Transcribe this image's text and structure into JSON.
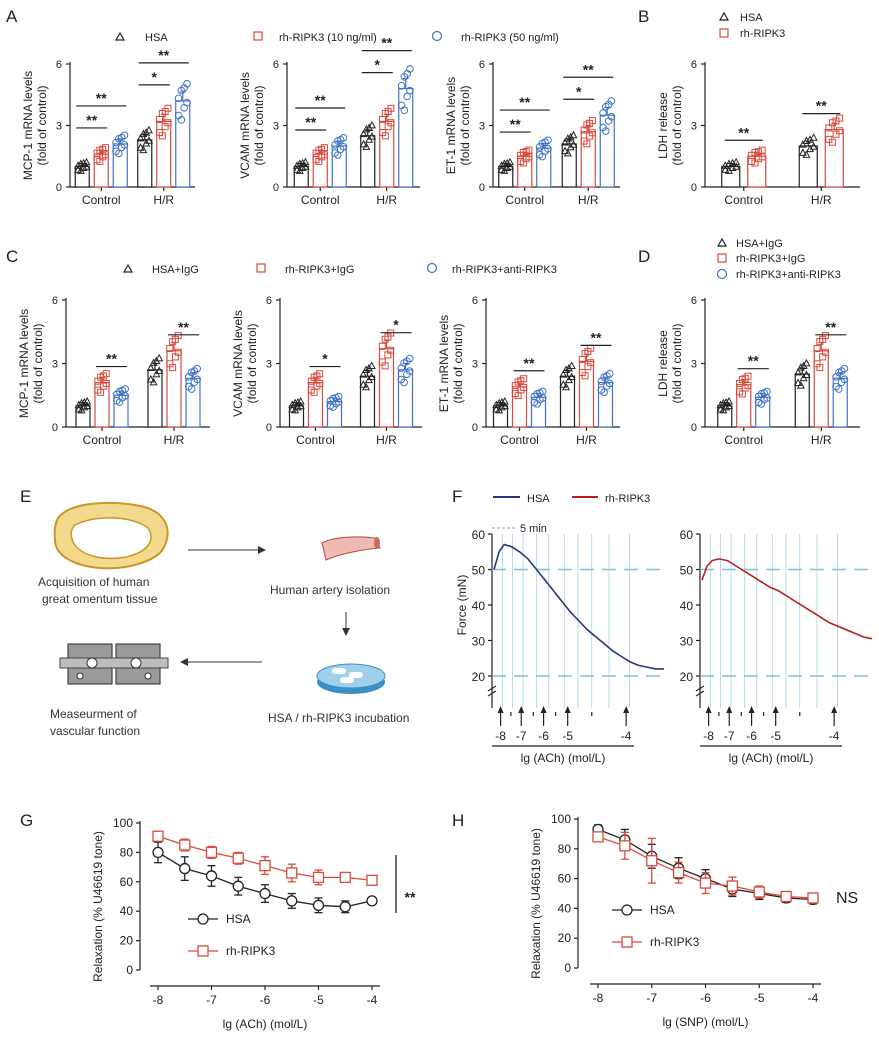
{
  "colors": {
    "hsa": "#222222",
    "r10": "#d94a3d",
    "r50": "#3f73c4",
    "anti": "#3f73c4",
    "trace_hsa": "#233a7a",
    "trace_rh": "#b52121",
    "cyan": "#7cc3d6"
  },
  "panel_labels": {
    "A": "A",
    "B": "B",
    "C": "C",
    "D": "D",
    "E": "E",
    "F": "F",
    "G": "G",
    "H": "H"
  },
  "legend_A": {
    "hsa": "HSA",
    "r10": "rh-RIPK3 (10 ng/ml)",
    "r50": "rh-RIPK3 (50 ng/ml)"
  },
  "legend_B": {
    "hsa": "HSA",
    "rh": "rh-RIPK3"
  },
  "legend_C": {
    "hsa": "HSA+IgG",
    "rh": "rh-RIPK3+IgG",
    "anti": "rh-RIPK3+anti-RIPK3"
  },
  "legend_D": {
    "hsa": "HSA+IgG",
    "rh": "rh-RIPK3+IgG",
    "anti": "rh-RIPK3+anti-RIPK3"
  },
  "bar_categories": [
    "Control",
    "H/R"
  ],
  "y_ticks_bar": [
    "0",
    "3",
    "6"
  ],
  "chart_data": [
    {
      "id": "A1",
      "type": "bar",
      "ylabel_1": "MCP-1 mRNA levels",
      "ylabel_2": "(fold of control)",
      "ylim": [
        0,
        6
      ],
      "categories": [
        "Control",
        "H/R"
      ],
      "series": [
        {
          "name": "HSA",
          "values": [
            1.0,
            2.3
          ]
        },
        {
          "name": "rh-RIPK3 (10 ng/ml)",
          "values": [
            1.6,
            3.2
          ]
        },
        {
          "name": "rh-RIPK3 (50 ng/ml)",
          "values": [
            2.1,
            4.2
          ]
        }
      ],
      "sig": [
        {
          "from": 0,
          "to": 1,
          "group": 0,
          "text": "**"
        },
        {
          "from": 0,
          "to": 2,
          "group": 0,
          "text": "**"
        },
        {
          "from": 0,
          "to": 1,
          "group": 1,
          "text": "*"
        },
        {
          "from": 0,
          "to": 2,
          "group": 1,
          "text": "**"
        }
      ]
    },
    {
      "id": "A2",
      "type": "bar",
      "ylabel_1": "VCAM mRNA levels",
      "ylabel_2": "(fold of control)",
      "ylim": [
        0,
        6
      ],
      "categories": [
        "Control",
        "H/R"
      ],
      "series": [
        {
          "name": "HSA",
          "values": [
            1.0,
            2.5
          ]
        },
        {
          "name": "rh-RIPK3 (10 ng/ml)",
          "values": [
            1.6,
            3.2
          ]
        },
        {
          "name": "rh-RIPK3 (50 ng/ml)",
          "values": [
            2.0,
            4.8
          ]
        }
      ],
      "sig": [
        {
          "from": 0,
          "to": 1,
          "group": 0,
          "text": "**"
        },
        {
          "from": 0,
          "to": 2,
          "group": 0,
          "text": "**"
        },
        {
          "from": 0,
          "to": 1,
          "group": 1,
          "text": "*"
        },
        {
          "from": 0,
          "to": 2,
          "group": 1,
          "text": "**"
        }
      ]
    },
    {
      "id": "A3",
      "type": "bar",
      "ylabel_1": "ET-1 mRNA levels",
      "ylabel_2": "(fold of control)",
      "ylim": [
        0,
        6
      ],
      "categories": [
        "Control",
        "H/R"
      ],
      "series": [
        {
          "name": "HSA",
          "values": [
            1.0,
            2.1
          ]
        },
        {
          "name": "rh-RIPK3 (10 ng/ml)",
          "values": [
            1.5,
            2.7
          ]
        },
        {
          "name": "rh-RIPK3 (50 ng/ml)",
          "values": [
            1.9,
            3.5
          ]
        }
      ],
      "sig": [
        {
          "from": 0,
          "to": 1,
          "group": 0,
          "text": "**"
        },
        {
          "from": 0,
          "to": 2,
          "group": 0,
          "text": "**"
        },
        {
          "from": 0,
          "to": 1,
          "group": 1,
          "text": "*"
        },
        {
          "from": 0,
          "to": 2,
          "group": 1,
          "text": "**"
        }
      ]
    },
    {
      "id": "B",
      "type": "bar",
      "ylabel_1": "LDH release",
      "ylabel_2": "(fold of control)",
      "ylim": [
        0,
        6
      ],
      "categories": [
        "Control",
        "H/R"
      ],
      "series": [
        {
          "name": "HSA",
          "values": [
            1.0,
            2.0
          ]
        },
        {
          "name": "rh-RIPK3",
          "values": [
            1.5,
            2.8
          ]
        }
      ],
      "sig": [
        {
          "from": 0,
          "to": 1,
          "group": 0,
          "text": "**"
        },
        {
          "from": 0,
          "to": 1,
          "group": 1,
          "text": "**"
        }
      ]
    },
    {
      "id": "C1",
      "type": "bar",
      "ylabel_1": "MCP-1 mRNA levels",
      "ylabel_2": "(fold of control)",
      "ylim": [
        0,
        6
      ],
      "categories": [
        "Control",
        "H/R"
      ],
      "series": [
        {
          "name": "HSA+IgG",
          "values": [
            1.0,
            2.7
          ]
        },
        {
          "name": "rh-RIPK3+IgG",
          "values": [
            2.1,
            3.6
          ]
        },
        {
          "name": "rh-RIPK3+anti-RIPK3",
          "values": [
            1.5,
            2.3
          ]
        }
      ],
      "sig": [
        {
          "from": 1,
          "to": 2,
          "group": 0,
          "text": "**"
        },
        {
          "from": 1,
          "to": 2,
          "group": 1,
          "text": "**"
        }
      ]
    },
    {
      "id": "C2",
      "type": "bar",
      "ylabel_1": "VCAM mRNA levels",
      "ylabel_2": "(fold of control)",
      "ylim": [
        0,
        6
      ],
      "categories": [
        "Control",
        "H/R"
      ],
      "series": [
        {
          "name": "HSA+IgG",
          "values": [
            1.0,
            2.4
          ]
        },
        {
          "name": "rh-RIPK3+IgG",
          "values": [
            2.1,
            3.7
          ]
        },
        {
          "name": "rh-RIPK3+anti-RIPK3",
          "values": [
            1.2,
            2.7
          ]
        }
      ],
      "sig": [
        {
          "from": 1,
          "to": 2,
          "group": 0,
          "text": "*"
        },
        {
          "from": 1,
          "to": 2,
          "group": 1,
          "text": "*"
        }
      ]
    },
    {
      "id": "C3",
      "type": "bar",
      "ylabel_1": "ET-1 mRNA levels",
      "ylabel_2": "(fold of control)",
      "ylim": [
        0,
        6
      ],
      "categories": [
        "Control",
        "H/R"
      ],
      "series": [
        {
          "name": "HSA+IgG",
          "values": [
            1.0,
            2.4
          ]
        },
        {
          "name": "rh-RIPK3+IgG",
          "values": [
            1.9,
            3.1
          ]
        },
        {
          "name": "rh-RIPK3+anti-RIPK3",
          "values": [
            1.4,
            2.1
          ]
        }
      ],
      "sig": [
        {
          "from": 1,
          "to": 2,
          "group": 0,
          "text": "**"
        },
        {
          "from": 1,
          "to": 2,
          "group": 1,
          "text": "**"
        }
      ]
    },
    {
      "id": "D",
      "type": "bar",
      "ylabel_1": "LDH release",
      "ylabel_2": "(fold of control)",
      "ylim": [
        0,
        6
      ],
      "categories": [
        "Control",
        "H/R"
      ],
      "series": [
        {
          "name": "HSA+IgG",
          "values": [
            1.0,
            2.5
          ]
        },
        {
          "name": "rh-RIPK3+IgG",
          "values": [
            2.0,
            3.6
          ]
        },
        {
          "name": "rh-RIPK3+anti-RIPK3",
          "values": [
            1.4,
            2.3
          ]
        }
      ],
      "sig": [
        {
          "from": 1,
          "to": 2,
          "group": 0,
          "text": "**"
        },
        {
          "from": 1,
          "to": 2,
          "group": 1,
          "text": "**"
        }
      ]
    },
    {
      "id": "F",
      "type": "line",
      "ylabel": "Force (mN)",
      "xlabel": "lg (ACh) (mol/L)",
      "yticks": [
        "20",
        "30",
        "40",
        "50",
        "60"
      ],
      "ylim": [
        20,
        60
      ],
      "xticks": [
        "-8",
        "-7",
        "-6",
        "-5",
        "-4"
      ],
      "timebar": "5 min",
      "legend": [
        "HSA",
        "rh-RIPK3"
      ],
      "series": [
        {
          "name": "HSA",
          "t": [
            0,
            0.03,
            0.06,
            0.1,
            0.15,
            0.2,
            0.25,
            0.3,
            0.35,
            0.4,
            0.45,
            0.5,
            0.55,
            0.6,
            0.65,
            0.7,
            0.75,
            0.8,
            0.85,
            0.9,
            0.95,
            1.0
          ],
          "values": [
            50,
            55,
            57,
            56.5,
            55,
            53,
            50,
            47,
            44,
            41,
            38,
            35.5,
            33,
            31,
            29,
            27,
            25.5,
            24,
            23,
            22.5,
            22,
            22
          ]
        },
        {
          "name": "rh-RIPK3",
          "t": [
            0,
            0.03,
            0.06,
            0.1,
            0.15,
            0.2,
            0.25,
            0.3,
            0.35,
            0.4,
            0.45,
            0.5,
            0.55,
            0.6,
            0.65,
            0.7,
            0.75,
            0.8,
            0.85,
            0.9,
            0.95,
            1.0
          ],
          "values": [
            47,
            51,
            52.5,
            53,
            52.5,
            51,
            49.5,
            48,
            46.5,
            45,
            44,
            42.5,
            41,
            39.5,
            38,
            36.5,
            35,
            34,
            33,
            32,
            31,
            30.5
          ]
        }
      ]
    },
    {
      "id": "G",
      "type": "line",
      "ylabel": "Relaxation (% U46619 tone)",
      "xlabel": "lg (ACh) (mol/L)",
      "ylim": [
        0,
        100
      ],
      "yticks": [
        "0",
        "20",
        "40",
        "60",
        "80",
        "100"
      ],
      "xticks": [
        "-8",
        "-7",
        "-6",
        "-5",
        "-4"
      ],
      "sig_text": "**",
      "series": [
        {
          "name": "HSA",
          "x": [
            -8,
            -7.5,
            -7,
            -6.5,
            -6,
            -5.5,
            -5,
            -4.5,
            -4
          ],
          "values": [
            80,
            69,
            64,
            57,
            52,
            47,
            44,
            43,
            47
          ],
          "err": [
            7,
            8,
            7,
            6,
            6,
            5,
            5,
            4,
            2
          ]
        },
        {
          "name": "rh-RIPK3",
          "x": [
            -8,
            -7.5,
            -7,
            -6.5,
            -6,
            -5.5,
            -5,
            -4.5,
            -4
          ],
          "values": [
            91,
            85,
            80,
            76,
            71,
            66,
            63,
            63,
            61
          ],
          "err": [
            3,
            4,
            4,
            4,
            6,
            6,
            5,
            3,
            3
          ]
        }
      ]
    },
    {
      "id": "H",
      "type": "line",
      "ylabel": "Relaxation (% U46619 tone)",
      "xlabel": "lg (SNP) (mol/L)",
      "ylim": [
        0,
        100
      ],
      "yticks": [
        "0",
        "20",
        "40",
        "60",
        "80",
        "100"
      ],
      "xticks": [
        "-8",
        "-7",
        "-6",
        "-5",
        "-4"
      ],
      "sig_text": "NS",
      "series": [
        {
          "name": "HSA",
          "x": [
            -8,
            -7.5,
            -7,
            -6.5,
            -6,
            -5.5,
            -5,
            -4.5,
            -4
          ],
          "values": [
            93,
            86,
            75,
            67,
            60,
            53,
            50,
            47,
            46
          ],
          "err": [
            3,
            7,
            8,
            7,
            6,
            5,
            4,
            3,
            3
          ]
        },
        {
          "name": "rh-RIPK3",
          "x": [
            -8,
            -7.5,
            -7,
            -6.5,
            -6,
            -5.5,
            -5,
            -4.5,
            -4
          ],
          "values": [
            88,
            82,
            72,
            64,
            57,
            55,
            51,
            48,
            47
          ],
          "err": [
            3,
            9,
            15,
            7,
            7,
            6,
            4,
            3,
            2
          ]
        }
      ]
    }
  ],
  "schematic": {
    "step1_line1": "Acquisition of human",
    "step1_line2": "great omentum tissue",
    "step2": "Human artery isolation",
    "step3": "HSA / rh-RIPK3 incubation",
    "step4_line1": "Measeurment of",
    "step4_line2": "vascular function"
  }
}
